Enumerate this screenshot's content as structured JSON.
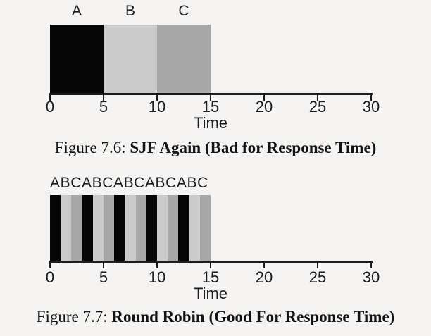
{
  "page": {
    "background": "#f4f3f2"
  },
  "colors": {
    "A": "#060606",
    "B": "#cbcbcb",
    "C": "#a7a7a7",
    "axis": "#1c1c1c"
  },
  "chart_data": [
    {
      "type": "bar",
      "variant": "scheduling-timeline",
      "title": "",
      "xlabel": "Time",
      "ylabel": "",
      "xlim": [
        0,
        30
      ],
      "xticks": [
        0,
        5,
        10,
        15,
        20,
        25,
        30
      ],
      "grid": false,
      "legend": false,
      "show_segment_labels": true,
      "segments": [
        {
          "job": "A",
          "start": 0,
          "end": 5
        },
        {
          "job": "B",
          "start": 5,
          "end": 10
        },
        {
          "job": "C",
          "start": 10,
          "end": 15
        }
      ],
      "caption": {
        "prefix": "Figure 7.6:",
        "bold": "SJF Again (Bad for Response Time)"
      }
    },
    {
      "type": "bar",
      "variant": "scheduling-timeline",
      "title": "",
      "top_label": "ABCABCABCABCABC",
      "xlabel": "Time",
      "ylabel": "",
      "xlim": [
        0,
        30
      ],
      "xticks": [
        0,
        5,
        10,
        15,
        20,
        25,
        30
      ],
      "grid": false,
      "legend": false,
      "show_segment_labels": false,
      "segments": [
        {
          "job": "A",
          "start": 0,
          "end": 1
        },
        {
          "job": "B",
          "start": 1,
          "end": 2
        },
        {
          "job": "C",
          "start": 2,
          "end": 3
        },
        {
          "job": "A",
          "start": 3,
          "end": 4
        },
        {
          "job": "B",
          "start": 4,
          "end": 5
        },
        {
          "job": "C",
          "start": 5,
          "end": 6
        },
        {
          "job": "A",
          "start": 6,
          "end": 7
        },
        {
          "job": "B",
          "start": 7,
          "end": 8
        },
        {
          "job": "C",
          "start": 8,
          "end": 9
        },
        {
          "job": "A",
          "start": 9,
          "end": 10
        },
        {
          "job": "B",
          "start": 10,
          "end": 11
        },
        {
          "job": "C",
          "start": 11,
          "end": 12
        },
        {
          "job": "A",
          "start": 12,
          "end": 13
        },
        {
          "job": "B",
          "start": 13,
          "end": 14
        },
        {
          "job": "C",
          "start": 14,
          "end": 15
        }
      ],
      "caption": {
        "prefix": "Figure 7.7:",
        "bold": "Round Robin (Good For Response Time)"
      }
    }
  ]
}
